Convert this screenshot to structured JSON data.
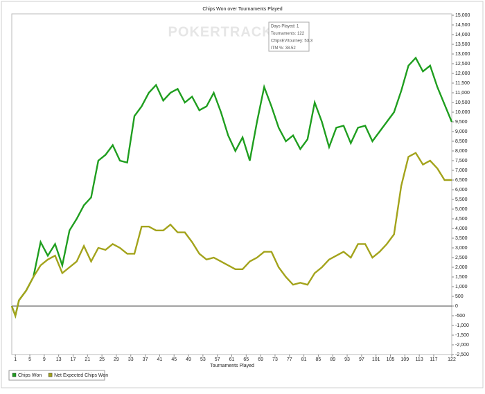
{
  "chart_data": {
    "type": "line",
    "title": "Chips Won over Tournaments Played",
    "x_label": "Tournaments Played",
    "watermark": "POKERTRACKER",
    "tooltip": [
      "Days Played: 1",
      "Tournaments: 122",
      "ChipsEV/tourney: 53.3",
      "ITM %: 38.52"
    ],
    "x": [
      0,
      1,
      2,
      4,
      6,
      8,
      10,
      12,
      14,
      16,
      18,
      20,
      22,
      24,
      26,
      28,
      30,
      32,
      34,
      36,
      38,
      40,
      42,
      44,
      46,
      48,
      50,
      52,
      54,
      56,
      58,
      60,
      62,
      64,
      66,
      68,
      70,
      72,
      74,
      76,
      78,
      80,
      82,
      84,
      86,
      88,
      90,
      92,
      94,
      96,
      98,
      100,
      102,
      104,
      106,
      108,
      110,
      112,
      114,
      116,
      118,
      120,
      122
    ],
    "series": [
      {
        "name": "Chips Won",
        "color": "#1f9e1f",
        "values": [
          0,
          -500,
          300,
          800,
          1500,
          3300,
          2600,
          3200,
          2100,
          3900,
          4500,
          5200,
          5600,
          7500,
          7800,
          8300,
          7500,
          7400,
          9800,
          10300,
          11000,
          11400,
          10600,
          11000,
          11200,
          10500,
          10800,
          10100,
          10300,
          11000,
          10000,
          8800,
          8000,
          8700,
          7500,
          9500,
          11300,
          10300,
          9200,
          8500,
          8800,
          8100,
          8600,
          10500,
          9500,
          8200,
          9200,
          9300,
          8400,
          9200,
          9300,
          8500,
          9000,
          9500,
          10000,
          11100,
          12400,
          12800,
          12100,
          12400,
          11300,
          10400,
          9500
        ]
      },
      {
        "name": "Net Expected Chips Won",
        "color": "#a3a31b",
        "values": [
          0,
          -500,
          300,
          800,
          1500,
          2100,
          2400,
          2600,
          1700,
          2000,
          2300,
          3100,
          2300,
          3000,
          2900,
          3200,
          3000,
          2700,
          2700,
          4100,
          4100,
          3900,
          3900,
          4200,
          3800,
          3800,
          3300,
          2700,
          2400,
          2500,
          2300,
          2100,
          1900,
          1900,
          2300,
          2500,
          2800,
          2800,
          2000,
          1500,
          1100,
          1200,
          1100,
          1700,
          2000,
          2400,
          2600,
          2800,
          2500,
          3200,
          3200,
          2500,
          2800,
          3200,
          3700,
          6200,
          7700,
          7900,
          7300,
          7500,
          7100,
          6500,
          6500
        ]
      }
    ],
    "xlim": [
      0,
      122
    ],
    "xticks": [
      1,
      5,
      9,
      13,
      17,
      21,
      25,
      29,
      33,
      37,
      41,
      45,
      49,
      53,
      57,
      61,
      65,
      69,
      73,
      77,
      81,
      85,
      89,
      93,
      97,
      101,
      105,
      109,
      113,
      117,
      122
    ],
    "ylim": [
      -2500,
      15000
    ],
    "yticks": [
      {
        "value": 15000,
        "label": "15,000"
      },
      {
        "value": 14500,
        "label": "14,500"
      },
      {
        "value": 14000,
        "label": "14,000"
      },
      {
        "value": 13500,
        "label": "13,500"
      },
      {
        "value": 13000,
        "label": "13,000"
      },
      {
        "value": 12500,
        "label": "12,500"
      },
      {
        "value": 12000,
        "label": "12,000"
      },
      {
        "value": 11500,
        "label": "11,500"
      },
      {
        "value": 11000,
        "label": "11,000"
      },
      {
        "value": 10500,
        "label": "10,500"
      },
      {
        "value": 10000,
        "label": "10,000"
      },
      {
        "value": 9500,
        "label": "9,500"
      },
      {
        "value": 9000,
        "label": "9,000"
      },
      {
        "value": 8500,
        "label": "8,500"
      },
      {
        "value": 8000,
        "label": "8,000"
      },
      {
        "value": 7500,
        "label": "7,500"
      },
      {
        "value": 7000,
        "label": "7,000"
      },
      {
        "value": 6500,
        "label": "6,500"
      },
      {
        "value": 6000,
        "label": "6,000"
      },
      {
        "value": 5500,
        "label": "5,500"
      },
      {
        "value": 5000,
        "label": "5,000"
      },
      {
        "value": 4500,
        "label": "4,500"
      },
      {
        "value": 4000,
        "label": "4,000"
      },
      {
        "value": 3500,
        "label": "3,500"
      },
      {
        "value": 3000,
        "label": "3,000"
      },
      {
        "value": 2500,
        "label": "2,500"
      },
      {
        "value": 2000,
        "label": "2,000"
      },
      {
        "value": 1500,
        "label": "1,500"
      },
      {
        "value": 1000,
        "label": "1,000"
      },
      500,
      0,
      -500,
      {
        "value": -1000,
        "label": "-1,000"
      },
      {
        "value": -1500,
        "label": "-1,500"
      },
      {
        "value": -2000,
        "label": "-2,000"
      },
      {
        "value": -2500,
        "label": "-2,500"
      }
    ],
    "y_axis_side": "right",
    "zero_line": true,
    "grid": false,
    "legend": "bottom-left"
  }
}
